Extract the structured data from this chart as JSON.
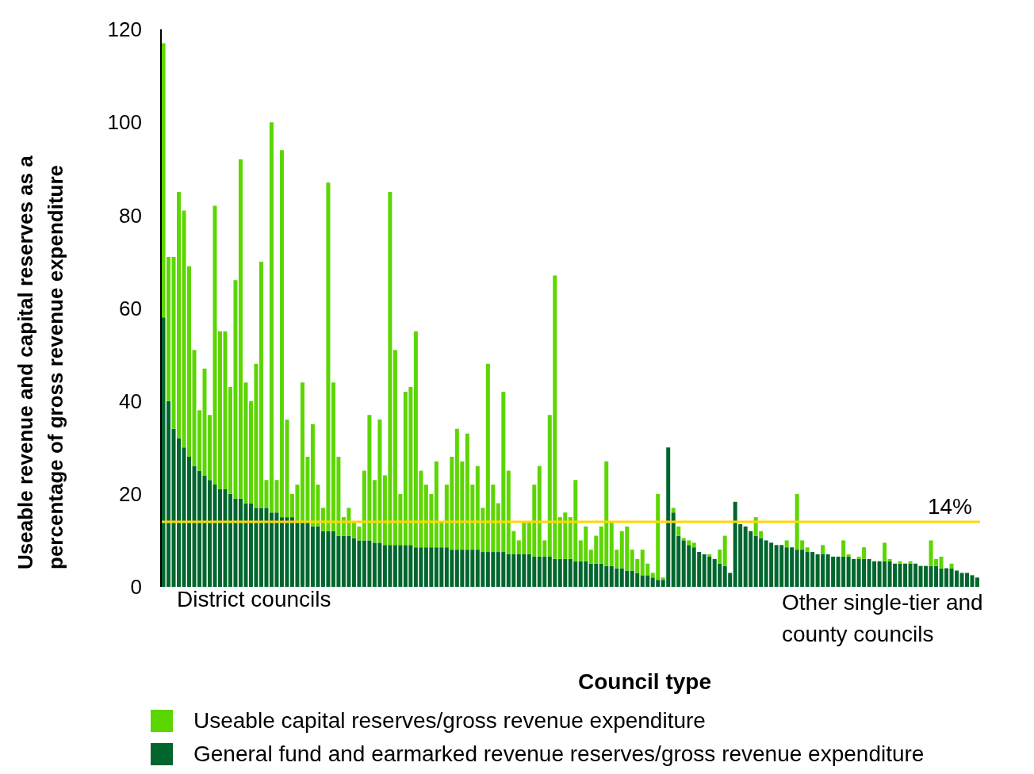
{
  "chart_data": {
    "type": "bar",
    "stacked": true,
    "xlabel": "Council type",
    "ylabel": "Useable revenue and capital  reserves as a percentage of gross revenue expenditure",
    "categories": [
      null,
      null,
      null,
      null,
      null,
      null,
      null,
      null,
      null,
      null,
      null,
      null,
      null,
      null,
      null,
      null,
      null,
      null,
      null,
      null,
      null,
      null,
      null,
      null,
      null,
      null,
      null,
      null,
      null,
      null,
      null,
      null,
      null,
      null,
      null,
      null,
      null,
      null,
      null,
      null,
      null,
      null,
      null,
      null,
      null,
      null,
      null,
      null,
      null,
      null,
      null,
      null,
      null,
      null,
      null,
      null,
      null,
      null,
      null,
      null,
      null,
      null,
      null,
      null,
      null,
      null,
      null,
      null,
      null,
      null,
      null,
      null,
      null,
      null,
      null,
      null,
      null,
      null,
      null,
      null,
      null,
      null,
      null,
      null,
      null,
      null,
      null,
      null,
      null,
      null,
      null,
      null,
      null,
      null,
      null,
      null,
      null,
      null,
      null,
      null,
      null,
      null,
      null,
      null,
      null,
      null,
      null,
      null,
      null,
      null,
      null,
      null,
      null,
      null,
      null,
      null,
      null,
      null,
      null,
      null,
      null,
      null,
      null,
      null,
      null,
      null,
      null,
      null,
      null,
      null,
      null,
      null,
      null,
      null,
      null,
      null,
      null,
      null,
      null,
      null,
      null,
      null,
      null,
      null,
      null,
      null,
      null,
      null,
      null,
      null,
      null,
      null,
      null,
      null,
      null,
      null,
      null,
      null,
      null
    ],
    "series": [
      {
        "name": "General fund and earmarked revenue reserves/gross revenue expenditure",
        "color": "#00662e",
        "values": [
          58,
          40,
          34,
          32,
          30,
          28,
          26,
          25,
          24,
          23,
          22,
          21,
          21,
          20,
          19,
          19,
          18,
          18,
          17,
          17,
          17,
          16,
          16,
          15,
          15,
          15,
          14,
          14,
          14,
          13,
          13,
          12,
          12,
          12,
          11,
          11,
          11,
          10.5,
          10,
          10,
          10,
          9.5,
          9.5,
          9,
          9,
          9,
          9,
          9,
          9,
          8.5,
          8.5,
          8.5,
          8.5,
          8.5,
          8.5,
          8.5,
          8,
          8,
          8,
          8,
          8,
          8,
          7.5,
          7.5,
          7.5,
          7.5,
          7.5,
          7,
          7,
          7,
          7,
          7,
          6.5,
          6.5,
          6.5,
          6.5,
          6,
          6,
          6,
          6,
          5.5,
          5.5,
          5.5,
          5,
          5,
          5,
          4.5,
          4.5,
          4,
          4,
          3.5,
          3.5,
          3,
          2.5,
          2.5,
          2,
          1.5,
          1.5,
          30,
          16,
          11,
          10,
          9,
          8.5,
          7.5,
          7,
          6.5,
          6,
          5,
          4.5,
          3,
          18.3,
          13.5,
          13,
          12,
          11,
          10.5,
          10,
          9.5,
          9,
          9,
          8.5,
          8.5,
          8,
          8,
          7.5,
          7.5,
          7,
          7,
          7,
          6.5,
          6.5,
          6.5,
          6.5,
          6,
          6,
          6,
          6,
          5.5,
          5.5,
          5.5,
          5.5,
          5,
          5,
          5,
          5,
          5,
          4.5,
          4.5,
          4.5,
          4.5,
          4,
          4,
          4,
          3.5,
          3,
          3,
          2.5,
          2
        ]
      },
      {
        "name": "Useable capital reserves/gross revenue expenditure",
        "color": "#5cd600",
        "values": [
          59,
          31,
          37,
          53,
          51,
          41,
          25,
          13,
          23,
          14,
          60,
          34,
          34,
          23,
          47,
          73,
          26,
          22,
          31,
          53,
          6,
          84,
          7,
          79,
          21,
          5,
          8,
          30,
          14,
          22,
          9,
          5,
          75,
          32,
          17,
          4,
          6,
          3.5,
          3,
          15,
          27,
          13.5,
          26.5,
          15,
          76,
          42,
          11,
          33,
          34,
          46.5,
          16.5,
          13.5,
          11.5,
          18.5,
          5.5,
          13.5,
          20,
          26,
          19,
          25,
          14,
          18,
          9.5,
          40.5,
          14.5,
          10.5,
          34.5,
          18,
          5,
          3,
          7,
          7,
          15.5,
          19.5,
          3.5,
          30.5,
          61,
          9,
          10,
          9,
          17.5,
          4.5,
          7.5,
          3,
          6,
          8,
          22.5,
          9.5,
          4,
          8,
          9.5,
          4.5,
          3,
          5.5,
          2.5,
          1,
          18.5,
          0.5,
          0,
          1,
          2,
          0.5,
          1,
          1,
          0,
          0,
          0.5,
          0,
          3,
          6.5,
          0,
          0,
          0,
          0,
          0,
          4,
          1.5,
          0,
          0,
          0,
          0,
          1.5,
          0,
          12,
          2,
          1,
          0,
          0,
          2,
          0,
          0,
          0,
          3.5,
          0.5,
          0,
          0.5,
          2.5,
          0,
          0,
          0,
          4,
          0.5,
          0,
          0.5,
          0,
          0.5,
          0,
          0,
          0,
          5.5,
          1.5,
          2.5,
          0,
          1,
          0,
          0,
          0,
          0,
          0
        ]
      }
    ],
    "ylim": [
      0,
      120
    ],
    "yticks": [
      0,
      20,
      40,
      60,
      80,
      100,
      120
    ],
    "grid": false,
    "legend": "bottom",
    "ref_lines": [
      {
        "axis": "y",
        "value": 14,
        "label": "14%",
        "color": "#ffd700"
      }
    ],
    "annotations": [
      "District councils",
      "Other single-tier and county councils"
    ]
  }
}
